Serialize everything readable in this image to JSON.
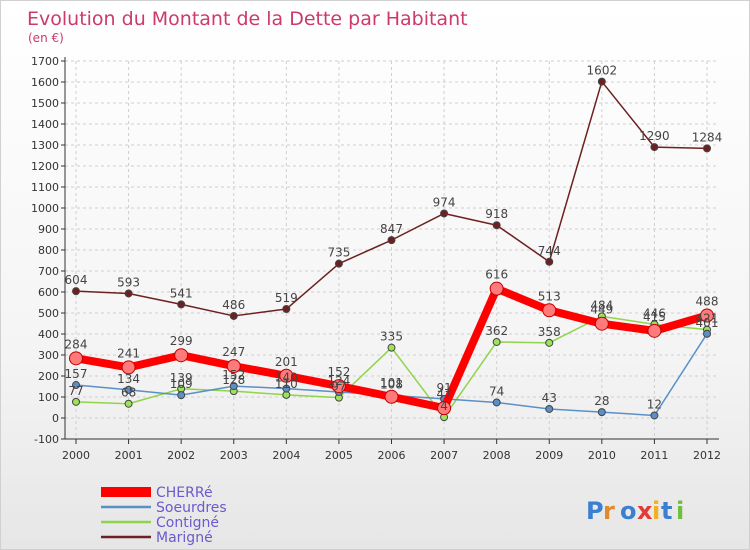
{
  "chart_data": {
    "type": "line",
    "title": "Evolution du Montant de la Dette par Habitant",
    "subtitle": "(en €)",
    "x": [
      "2000",
      "2001",
      "2002",
      "2003",
      "2004",
      "2005",
      "2006",
      "2007",
      "2008",
      "2009",
      "2010",
      "2011",
      "2012"
    ],
    "ylim": [
      -100,
      1700
    ],
    "yticks": [
      -100,
      0,
      100,
      200,
      300,
      400,
      500,
      600,
      700,
      800,
      900,
      1000,
      1100,
      1200,
      1300,
      1400,
      1500,
      1600,
      1700
    ],
    "grid": true,
    "legend_position": "bottom-left",
    "series": [
      {
        "name": "CHERRé",
        "color": "#ff0000",
        "values": [
          284,
          241,
          299,
          247,
          201,
          152,
          101,
          47,
          616,
          513,
          449,
          415,
          488
        ]
      },
      {
        "name": "Soeurdres",
        "color": "#5b8fc7",
        "values": [
          157,
          134,
          109,
          152,
          140,
          124,
          108,
          91,
          74,
          43,
          28,
          12,
          401
        ]
      },
      {
        "name": "Contigné",
        "color": "#8fd44a",
        "values": [
          77,
          68,
          139,
          128,
          110,
          97,
          335,
          4,
          362,
          358,
          484,
          446,
          421
        ]
      },
      {
        "name": "Marigné",
        "color": "#6e2020",
        "values": [
          604,
          593,
          541,
          486,
          519,
          735,
          847,
          974,
          918,
          744,
          1602,
          1290,
          1284
        ]
      }
    ]
  },
  "logo": {
    "text": "Proxiti"
  }
}
